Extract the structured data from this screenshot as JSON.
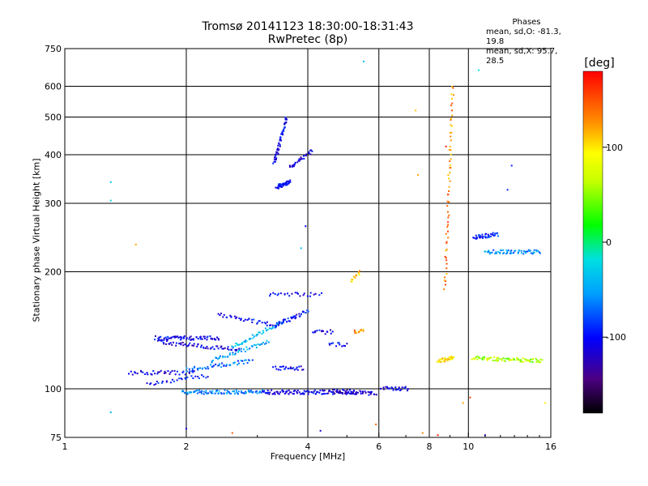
{
  "chart_data": {
    "type": "scatter",
    "title": "Tromsø 20141123 18:30:00-18:31:43",
    "subtitle": "RwPretec (8p)",
    "xlabel": "Frequency [MHz]",
    "ylabel": "Stationary phase Virtual Height [km]",
    "x_scale": "log",
    "y_scale": "log",
    "xlim": [
      1,
      16
    ],
    "ylim": [
      75,
      750
    ],
    "x_ticks": [
      1,
      2,
      4,
      6,
      8,
      10,
      16
    ],
    "y_ticks": [
      75,
      100,
      200,
      300,
      400,
      500,
      600,
      750
    ],
    "x_tick_labels": [
      "1",
      "2",
      "4",
      "6",
      "8",
      "10",
      "16"
    ],
    "y_tick_labels": [
      "75",
      "100",
      "200",
      "300",
      "400",
      "500",
      "600",
      "750"
    ],
    "grid": true,
    "colorbar": {
      "label": "[deg]",
      "ticks": [
        100,
        0,
        -100
      ],
      "tick_labels": [
        "100",
        "0",
        "-100"
      ],
      "range": [
        -180,
        180
      ]
    },
    "phase_stats": {
      "heading": "Phases",
      "o_line": "mean, sd,O: -81.3, 19.8",
      "x_line": "mean, sd,X:  95.7, 28.5"
    },
    "traces": [
      {
        "f": [
          1.68,
          2.4
        ],
        "h": [
          135,
          135
        ],
        "phase": -105,
        "n": 70
      },
      {
        "f": [
          1.7,
          2.7
        ],
        "h": [
          132,
          126
        ],
        "phase": -110,
        "n": 60
      },
      {
        "f": [
          1.45,
          2.1
        ],
        "h": [
          110,
          110
        ],
        "phase": -110,
        "n": 40
      },
      {
        "f": [
          1.6,
          2.25
        ],
        "h": [
          103,
          108
        ],
        "phase": -100,
        "n": 30
      },
      {
        "f": [
          1.95,
          3.1
        ],
        "h": [
          98,
          98
        ],
        "phase": -60,
        "n": 90
      },
      {
        "f": [
          3.1,
          5.3
        ],
        "h": [
          98,
          98
        ],
        "phase": -110,
        "n": 110
      },
      {
        "f": [
          4.6,
          5.9
        ],
        "h": [
          99,
          97
        ],
        "phase": -118,
        "n": 45
      },
      {
        "f": [
          6.1,
          7.1
        ],
        "h": [
          100,
          100
        ],
        "phase": -105,
        "n": 25
      },
      {
        "f": [
          2.0,
          2.9
        ],
        "h": [
          112,
          118
        ],
        "phase": -70,
        "n": 50
      },
      {
        "f": [
          2.3,
          3.2
        ],
        "h": [
          118,
          132
        ],
        "phase": -50,
        "n": 45
      },
      {
        "f": [
          2.6,
          3.5
        ],
        "h": [
          128,
          150
        ],
        "phase": -40,
        "n": 45
      },
      {
        "f": [
          2.4,
          3.4
        ],
        "h": [
          155,
          145
        ],
        "phase": -100,
        "n": 40
      },
      {
        "f": [
          3.3,
          4.0
        ],
        "h": [
          145,
          158
        ],
        "phase": -100,
        "n": 40
      },
      {
        "f": [
          3.2,
          4.3
        ],
        "h": [
          175,
          175
        ],
        "phase": -105,
        "n": 25
      },
      {
        "f": [
          3.3,
          3.9
        ],
        "h": [
          113,
          113
        ],
        "phase": -105,
        "n": 25
      },
      {
        "f": [
          4.1,
          4.6
        ],
        "h": [
          140,
          140
        ],
        "phase": -110,
        "n": 15
      },
      {
        "f": [
          4.5,
          5.0
        ],
        "h": [
          130,
          130
        ],
        "phase": -100,
        "n": 12
      },
      {
        "f": [
          3.35,
          3.6
        ],
        "h": [
          330,
          340
        ],
        "phase": -100,
        "n": 50
      },
      {
        "f": [
          3.3,
          3.55
        ],
        "h": [
          380,
          500
        ],
        "phase": -105,
        "n": 55
      },
      {
        "f": [
          3.6,
          4.1
        ],
        "h": [
          370,
          410
        ],
        "phase": -110,
        "n": 30
      },
      {
        "f": [
          5.1,
          5.4
        ],
        "h": [
          190,
          200
        ],
        "phase": 110,
        "n": 12
      },
      {
        "f": [
          5.2,
          5.5
        ],
        "h": [
          140,
          142
        ],
        "phase": 130,
        "n": 12
      },
      {
        "f": [
          8.75,
          9.15
        ],
        "h": [
          180,
          600
        ],
        "phase": 130,
        "n": 60
      },
      {
        "f": [
          10.3,
          11.8
        ],
        "h": [
          245,
          250
        ],
        "phase": -90,
        "n": 40
      },
      {
        "f": [
          11.0,
          15.0
        ],
        "h": [
          225,
          225
        ],
        "phase": -60,
        "n": 60
      },
      {
        "f": [
          10.2,
          15.2
        ],
        "h": [
          120,
          118
        ],
        "phase": 60,
        "n": 80
      },
      {
        "f": [
          8.4,
          9.2
        ],
        "h": [
          118,
          120
        ],
        "phase": 100,
        "n": 30
      }
    ],
    "scatter_points": [
      [
        1.3,
        340,
        -30
      ],
      [
        1.3,
        305,
        -20
      ],
      [
        1.3,
        87,
        -40
      ],
      [
        1.5,
        235,
        120
      ],
      [
        5.5,
        695,
        -40
      ],
      [
        10.6,
        660,
        -20
      ],
      [
        12.8,
        375,
        -90
      ],
      [
        12.5,
        325,
        -90
      ],
      [
        3.95,
        262,
        -100
      ],
      [
        3.85,
        230,
        -40
      ],
      [
        2.6,
        77,
        150
      ],
      [
        2.0,
        79,
        -110
      ],
      [
        8.8,
        420,
        170
      ],
      [
        9.0,
        370,
        140
      ],
      [
        7.5,
        355,
        120
      ],
      [
        7.4,
        520,
        110
      ],
      [
        9.7,
        92,
        120
      ],
      [
        10.1,
        95,
        150
      ],
      [
        7.7,
        77,
        130
      ],
      [
        8.4,
        76,
        170
      ],
      [
        5.9,
        81,
        140
      ],
      [
        4.3,
        78,
        -110
      ],
      [
        15.5,
        92,
        100
      ],
      [
        11.0,
        76,
        -110
      ]
    ]
  }
}
